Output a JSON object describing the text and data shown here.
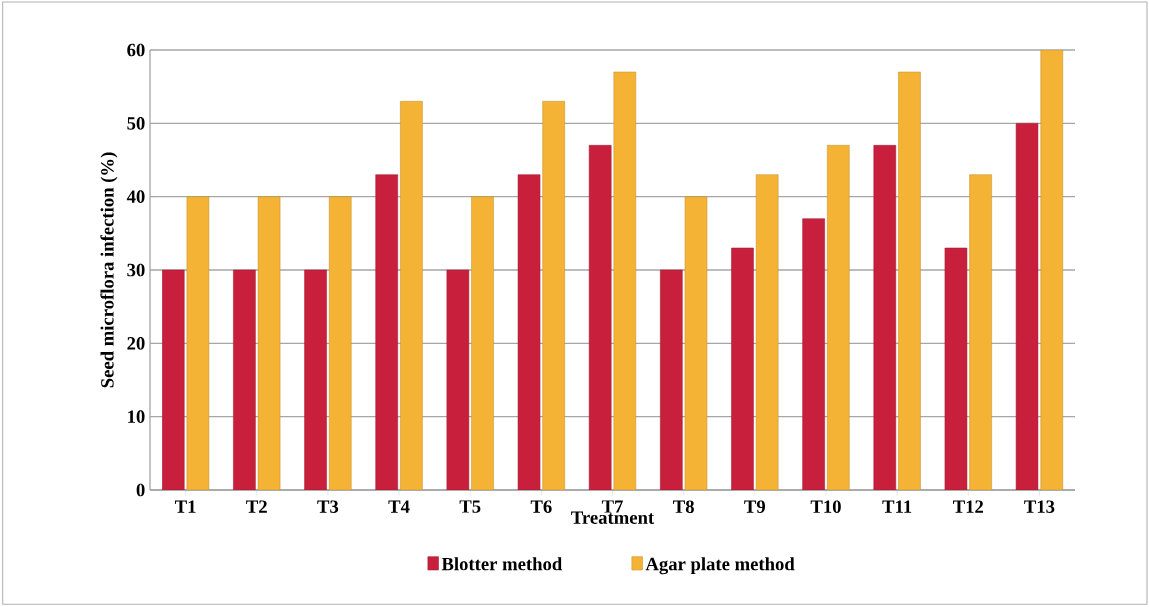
{
  "chart_data": {
    "type": "bar",
    "xlabel": "Treatment",
    "ylabel": "Seed microflora infection (%)",
    "categories": [
      "T1",
      "T2",
      "T3",
      "T4",
      "T5",
      "T6",
      "T7",
      "T8",
      "T9",
      "T10",
      "T11",
      "T12",
      "T13"
    ],
    "series": [
      {
        "name": "Blotter method",
        "color": "#c8203c",
        "values": [
          30,
          30,
          30,
          43,
          30,
          43,
          47,
          30,
          33,
          37,
          47,
          33,
          50
        ]
      },
      {
        "name": "Agar plate method",
        "color": "#f5b335",
        "values": [
          40,
          40,
          40,
          53,
          40,
          53,
          57,
          40,
          43,
          47,
          57,
          43,
          60
        ]
      }
    ],
    "ylim": [
      0,
      60
    ],
    "yticks": [
      0,
      10,
      20,
      30,
      40,
      50,
      60
    ],
    "grid": "y",
    "legend": "bottom"
  }
}
